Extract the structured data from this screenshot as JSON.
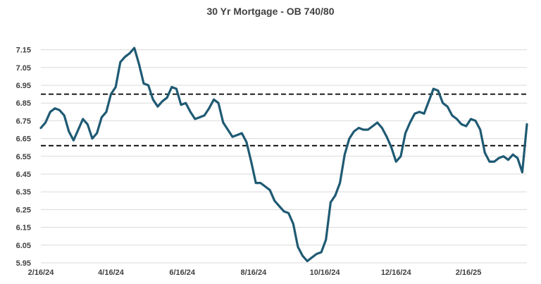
{
  "chart_data": {
    "type": "line",
    "title": "30 Yr Mortgage - OB 740/80",
    "xlabel": "",
    "ylabel": "",
    "x_tick_labels": [
      "2/16/24",
      "4/16/24",
      "6/16/24",
      "8/16/24",
      "10/16/24",
      "12/16/24",
      "2/16/25"
    ],
    "y_tick_labels": [
      "5.95",
      "6.05",
      "6.15",
      "6.25",
      "6.35",
      "6.45",
      "6.55",
      "6.65",
      "6.75",
      "6.85",
      "6.95",
      "7.05",
      "7.15"
    ],
    "ylim": [
      5.95,
      7.2
    ],
    "grid": "horizontal",
    "legend": "none",
    "colors": {
      "line": "#1f5a73",
      "reference_lines": "#000000",
      "grid": "#d9d9d9"
    },
    "reference_lines": [
      {
        "value": 6.9,
        "style": "dashed"
      },
      {
        "value": 6.61,
        "style": "dashed"
      }
    ],
    "series": [
      {
        "x": [
          "2024-02-16",
          "2024-02-20",
          "2024-02-24",
          "2024-02-28",
          "2024-03-03",
          "2024-03-07",
          "2024-03-11",
          "2024-03-15",
          "2024-03-19",
          "2024-03-23",
          "2024-03-27",
          "2024-03-31",
          "2024-04-04",
          "2024-04-08",
          "2024-04-12",
          "2024-04-16",
          "2024-04-20",
          "2024-04-24",
          "2024-04-28",
          "2024-05-02",
          "2024-05-06",
          "2024-05-10",
          "2024-05-14",
          "2024-05-18",
          "2024-05-22",
          "2024-05-26",
          "2024-05-30",
          "2024-06-03",
          "2024-06-07",
          "2024-06-11",
          "2024-06-15",
          "2024-06-19",
          "2024-06-23",
          "2024-06-27",
          "2024-07-01",
          "2024-07-05",
          "2024-07-09",
          "2024-07-13",
          "2024-07-17",
          "2024-07-21",
          "2024-07-25",
          "2024-07-29",
          "2024-08-02",
          "2024-08-06",
          "2024-08-10",
          "2024-08-14",
          "2024-08-18",
          "2024-08-22",
          "2024-08-26",
          "2024-08-30",
          "2024-09-03",
          "2024-09-07",
          "2024-09-11",
          "2024-09-15",
          "2024-09-19",
          "2024-09-23",
          "2024-09-27",
          "2024-10-01",
          "2024-10-05",
          "2024-10-09",
          "2024-10-13",
          "2024-10-17",
          "2024-10-21",
          "2024-10-25",
          "2024-10-29",
          "2024-11-02",
          "2024-11-06",
          "2024-11-10",
          "2024-11-14",
          "2024-11-18",
          "2024-11-22",
          "2024-11-26",
          "2024-11-30",
          "2024-12-04",
          "2024-12-08",
          "2024-12-12",
          "2024-12-16",
          "2024-12-20",
          "2024-12-24",
          "2024-12-28",
          "2025-01-01",
          "2025-01-05",
          "2025-01-09",
          "2025-01-13",
          "2025-01-17",
          "2025-01-21",
          "2025-01-25",
          "2025-01-29",
          "2025-02-02",
          "2025-02-06",
          "2025-02-10",
          "2025-02-14",
          "2025-02-18",
          "2025-02-22",
          "2025-02-26",
          "2025-03-02",
          "2025-03-06",
          "2025-03-10",
          "2025-03-14",
          "2025-03-18",
          "2025-03-22",
          "2025-03-26",
          "2025-03-30",
          "2025-04-03",
          "2025-04-07"
        ],
        "values": [
          6.71,
          6.74,
          6.8,
          6.82,
          6.81,
          6.78,
          6.69,
          6.64,
          6.7,
          6.76,
          6.73,
          6.65,
          6.68,
          6.77,
          6.8,
          6.9,
          6.94,
          7.08,
          7.11,
          7.13,
          7.16,
          7.07,
          6.96,
          6.95,
          6.87,
          6.83,
          6.86,
          6.88,
          6.94,
          6.93,
          6.84,
          6.85,
          6.8,
          6.76,
          6.77,
          6.78,
          6.82,
          6.87,
          6.85,
          6.74,
          6.7,
          6.66,
          6.67,
          6.68,
          6.63,
          6.52,
          6.4,
          6.4,
          6.38,
          6.36,
          6.3,
          6.27,
          6.24,
          6.23,
          6.17,
          6.04,
          5.99,
          5.96,
          5.98,
          6.0,
          6.01,
          6.08,
          6.29,
          6.33,
          6.4,
          6.56,
          6.65,
          6.69,
          6.71,
          6.7,
          6.7,
          6.72,
          6.74,
          6.71,
          6.66,
          6.6,
          6.52,
          6.55,
          6.68,
          6.74,
          6.79,
          6.8,
          6.79,
          6.86,
          6.93,
          6.92,
          6.85,
          6.83,
          6.78,
          6.76,
          6.73,
          6.72,
          6.76,
          6.75,
          6.7,
          6.57,
          6.52,
          6.52,
          6.54,
          6.55,
          6.53,
          6.56,
          6.54,
          6.46,
          6.73
        ]
      }
    ]
  }
}
